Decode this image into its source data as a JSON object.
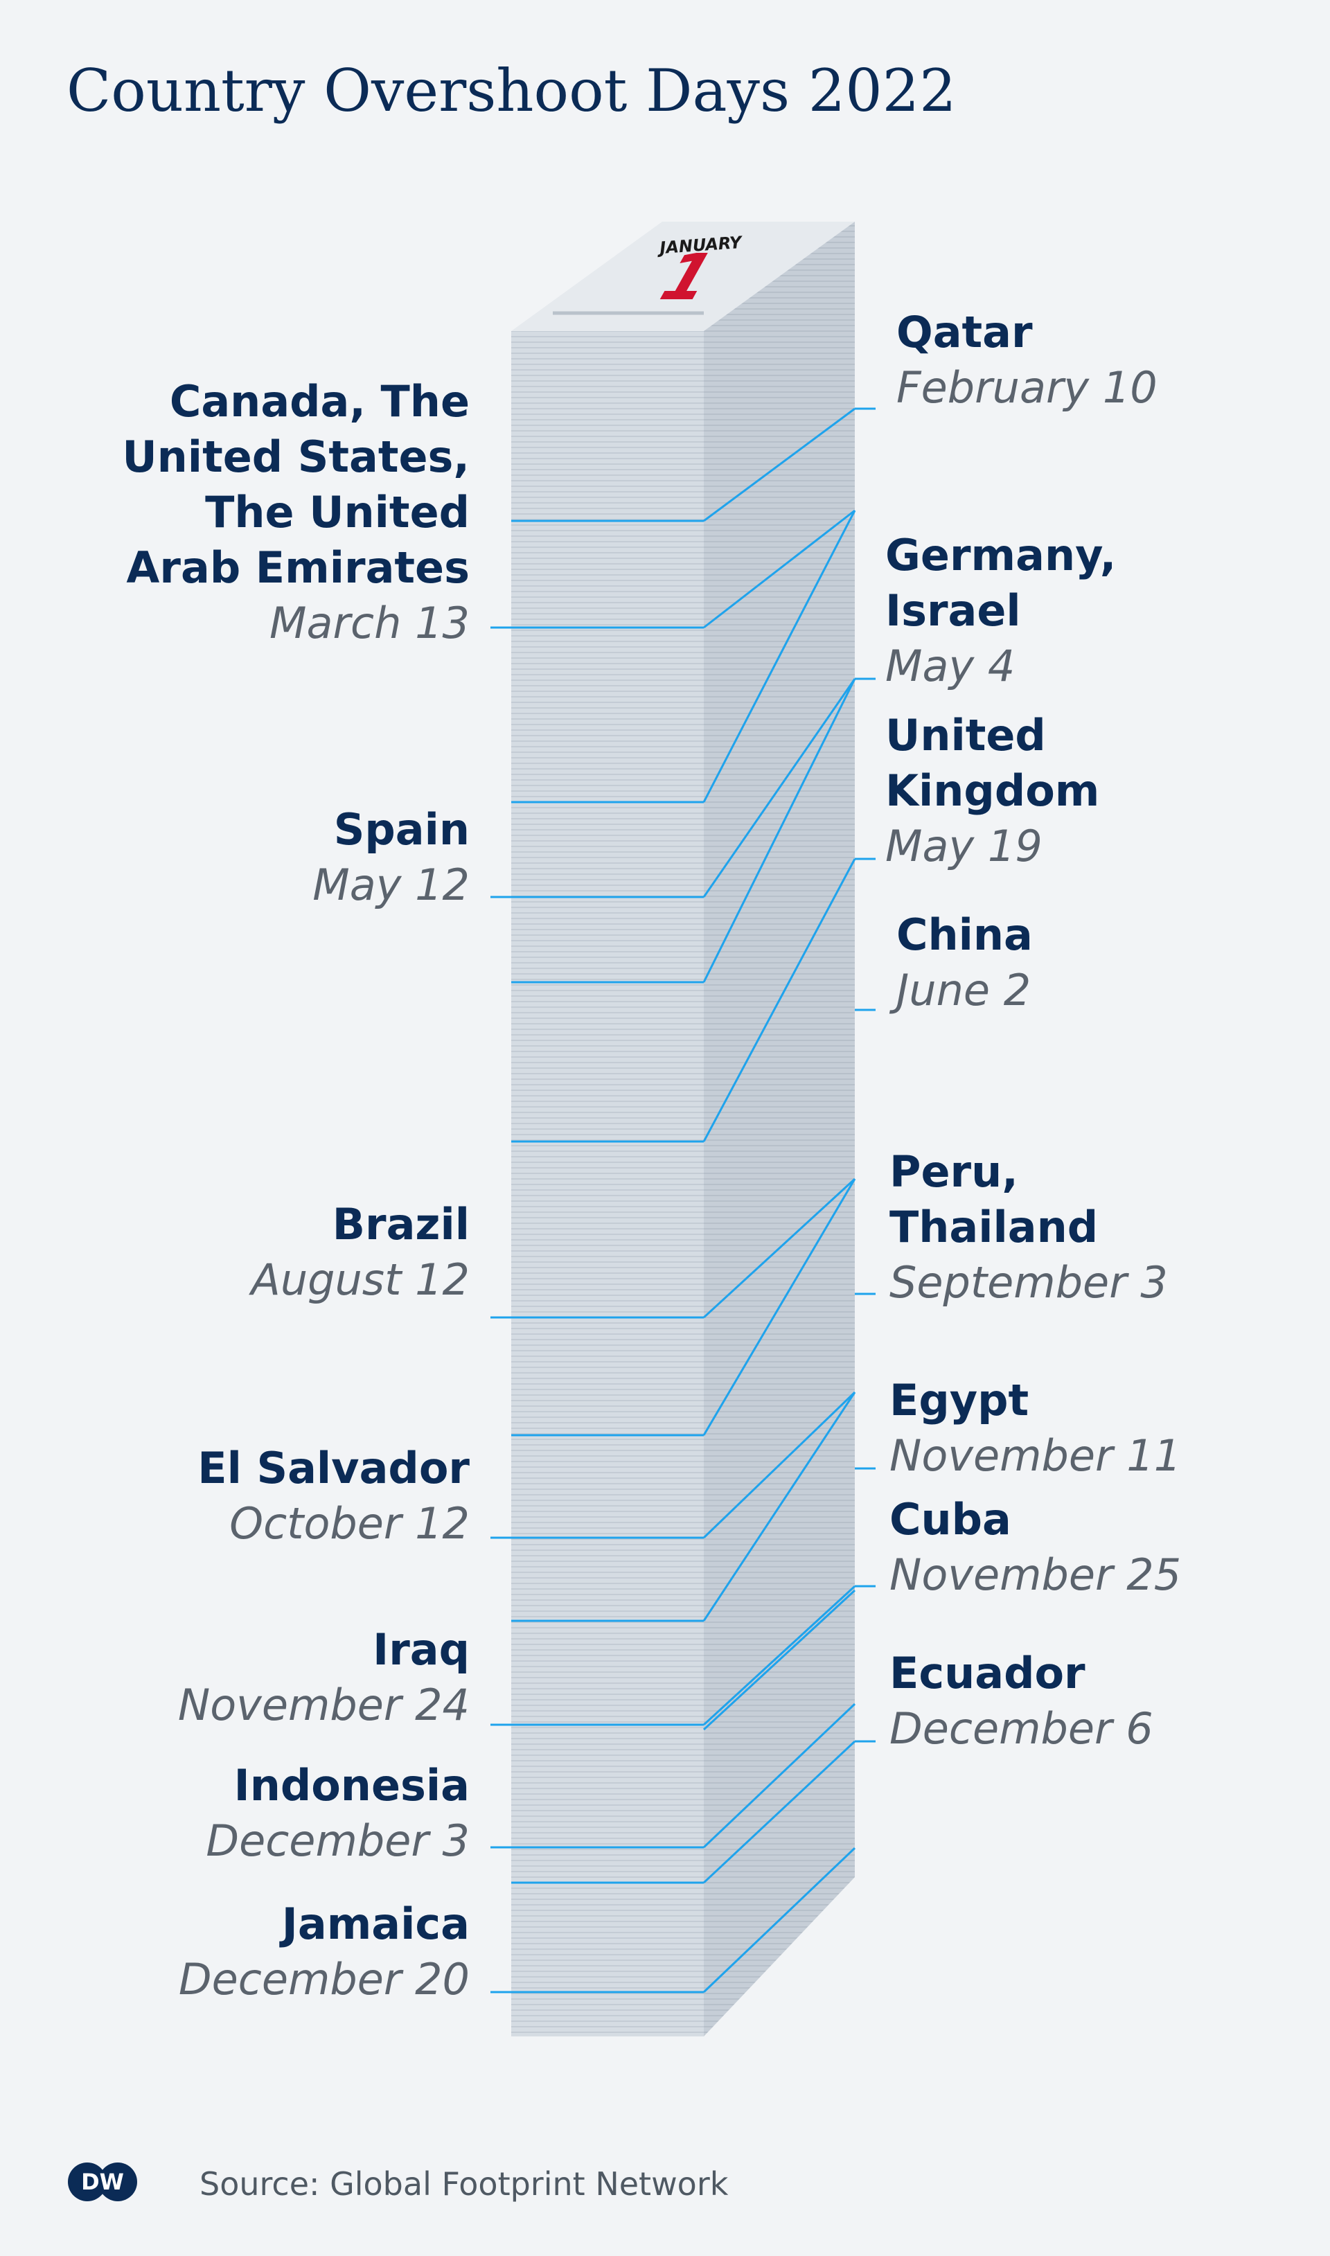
{
  "title": "Country Overshoot Days 2022",
  "calendar": {
    "month": "JANUARY",
    "day": "1"
  },
  "labels_left": [
    {
      "country": "Canada, The\nUnited States,\nThe United\nArab Emirates",
      "date": "March 13"
    },
    {
      "country": "Spain",
      "date": "May 12"
    },
    {
      "country": "Brazil",
      "date": "August 12"
    },
    {
      "country": "El Salvador",
      "date": "October 12"
    },
    {
      "country": "Iraq",
      "date": "November 24"
    },
    {
      "country": "Indonesia",
      "date": "December 3"
    },
    {
      "country": "Jamaica",
      "date": "December 20"
    }
  ],
  "labels_right": [
    {
      "country": "Qatar",
      "date": "February 10"
    },
    {
      "country": "Germany,\nIsrael",
      "date": "May 4"
    },
    {
      "country": "United\nKingdom",
      "date": "May 19"
    },
    {
      "country": "China",
      "date": "June 2"
    },
    {
      "country": "Peru,\nThailand",
      "date": "September 3"
    },
    {
      "country": "Egypt",
      "date": "November 11"
    },
    {
      "country": "Cuba",
      "date": "November 25"
    },
    {
      "country": "Ecuador",
      "date": "December 6"
    }
  ],
  "logo_text": "DW",
  "source": "Source: Global Footprint Network",
  "colors": {
    "navy": "#0b2b56",
    "line": "#1fa3ec",
    "red": "#d0132f",
    "front": "#d3dae1",
    "side": "#c3cbd3"
  }
}
